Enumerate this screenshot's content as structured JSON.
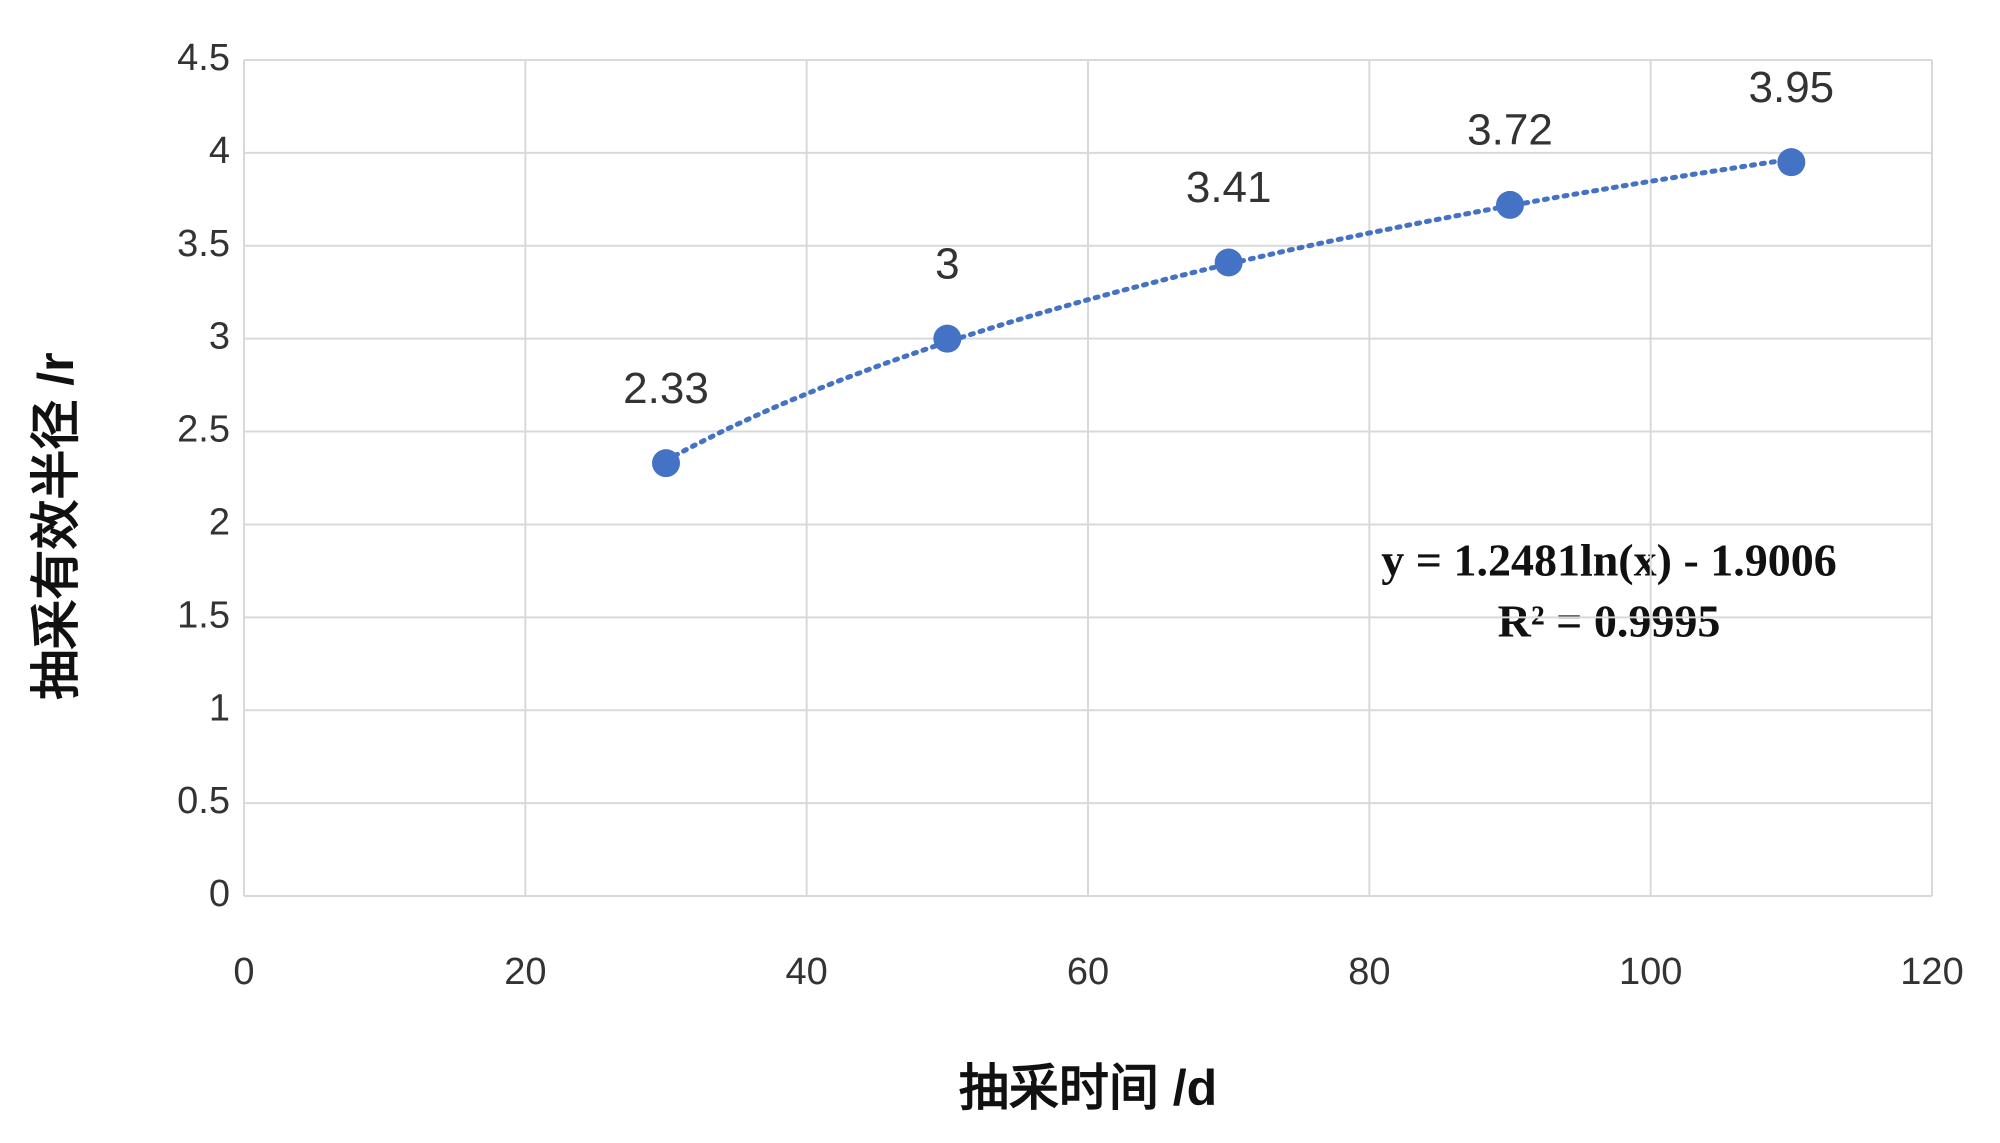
{
  "chart_data": {
    "type": "scatter",
    "x_label": "抽采时间 /d",
    "y_label": "抽采有效半径 /r",
    "x": [
      30,
      50,
      70,
      90,
      110
    ],
    "values": [
      2.33,
      3,
      3.41,
      3.72,
      3.95
    ],
    "color": "#4472c4",
    "xlim": [
      0,
      120
    ],
    "xticks": [
      0,
      20,
      40,
      60,
      80,
      100,
      120
    ],
    "ylim": [
      0,
      4.5
    ],
    "yticks": [
      0,
      0.5,
      1,
      1.5,
      2,
      2.5,
      3,
      3.5,
      4,
      4.5
    ],
    "grid": true,
    "trendline": {
      "type": "logarithmic",
      "equation": "y = 1.2481ln(x) - 1.9006",
      "r_squared": "R² = 0.9995"
    }
  }
}
